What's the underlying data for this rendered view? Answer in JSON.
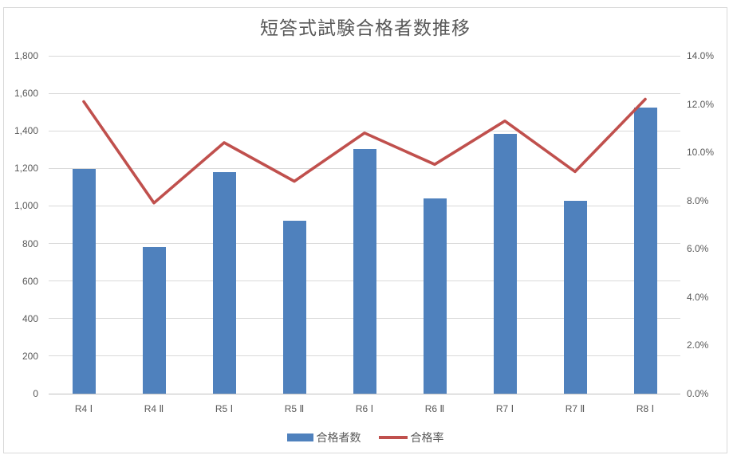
{
  "chart_data": {
    "type": "bar+line",
    "title": "短答式試験合格者数推移",
    "categories": [
      "R4 Ⅰ",
      "R4 Ⅱ",
      "R5 Ⅰ",
      "R5 Ⅱ",
      "R6 Ⅰ",
      "R6 Ⅱ",
      "R7 Ⅰ",
      "R7 Ⅱ",
      "R8 Ⅰ"
    ],
    "series": [
      {
        "name": "合格者数",
        "type": "bar",
        "axis": "left",
        "color": "#4F81BD",
        "values": [
          1199,
          780,
          1182,
          921,
          1304,
          1041,
          1383,
          1027,
          1524
        ]
      },
      {
        "name": "合格率",
        "type": "line",
        "axis": "right",
        "color": "#C0504D",
        "values": [
          12.1,
          7.9,
          10.4,
          8.8,
          10.8,
          9.5,
          11.3,
          9.2,
          12.2
        ],
        "unit": "%"
      }
    ],
    "axes": {
      "left": {
        "min": 0,
        "max": 1800,
        "step": 200,
        "ticks": [
          "0",
          "200",
          "400",
          "600",
          "800",
          "1,000",
          "1,200",
          "1,400",
          "1,600",
          "1,800"
        ]
      },
      "right": {
        "min": 0,
        "max": 14,
        "step": 2,
        "ticks": [
          "0.0%",
          "2.0%",
          "4.0%",
          "6.0%",
          "8.0%",
          "10.0%",
          "12.0%",
          "14.0%"
        ]
      }
    },
    "grid": true,
    "legend_position": "bottom",
    "colors": {
      "bar": "#4F81BD",
      "line": "#C0504D",
      "text": "#595959",
      "gridline": "#D9D9D9",
      "axis_line": "#BFBFBF",
      "frame_border": "#D9D9D9",
      "background": "#FFFFFF"
    }
  }
}
